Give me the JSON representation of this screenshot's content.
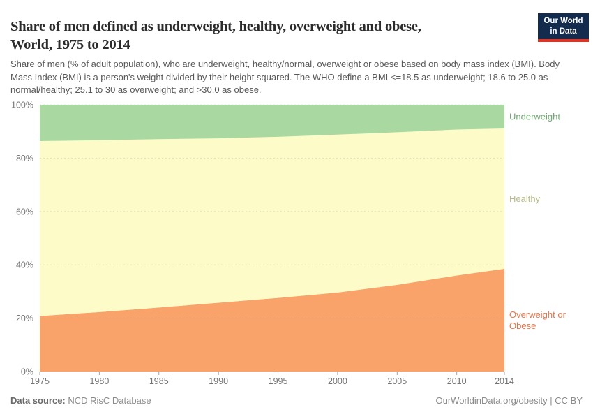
{
  "header": {
    "title_lines": [
      "Share of men defined as underweight, healthy, overweight and obese,",
      "World, 1975 to 2014"
    ],
    "subtitle": "Share of men (% of adult population), who are underweight, healthy/normal, overweight or obese based on body mass index (BMI). Body Mass Index (BMI) is a person's weight divided by their height squared. The WHO define a BMI <=18.5 as underweight; 18.6 to 25.0 as normal/healthy; 25.1 to 30 as overweight; and >30.0 as obese.",
    "logo": {
      "line1": "Our World",
      "line2": "in Data",
      "bg_color": "#132c4e",
      "bar_color": "#dc3425"
    }
  },
  "chart_data": {
    "type": "area",
    "stacked": true,
    "x": [
      1975,
      1980,
      1985,
      1990,
      1995,
      2000,
      2005,
      2010,
      2014
    ],
    "series": [
      {
        "name": "Overweight or Obese",
        "label_lines": [
          "Overweight or",
          "Obese"
        ],
        "color": "#f9a269",
        "label_color": "#e4764b",
        "values": [
          20.8,
          22.3,
          24.0,
          25.8,
          27.6,
          29.6,
          32.5,
          36.0,
          38.5
        ]
      },
      {
        "name": "Healthy",
        "label_lines": [
          "Healthy"
        ],
        "color": "#fdfcc8",
        "label_color": "#b9bc87",
        "values": [
          65.6,
          64.4,
          63.1,
          61.6,
          60.4,
          59.2,
          57.2,
          54.7,
          52.6
        ]
      },
      {
        "name": "Underweight",
        "label_lines": [
          "Underweight"
        ],
        "color": "#a9d8a1",
        "label_color": "#6fa871",
        "values": [
          13.6,
          13.3,
          12.9,
          12.6,
          12.0,
          11.2,
          10.3,
          9.3,
          8.9
        ]
      }
    ],
    "xlabel": "",
    "ylabel": "",
    "ylim": [
      0,
      100
    ],
    "yticks": [
      0,
      20,
      40,
      60,
      80,
      100
    ],
    "ytick_suffix": "%",
    "xticks": [
      1975,
      1980,
      1985,
      1990,
      1995,
      2000,
      2005,
      2010,
      2014
    ],
    "grid": "dashed",
    "grid_color": "#8f8f8f",
    "axis_text_color": "#737373",
    "tick_color": "#a3a3a3",
    "legend_position": "right"
  },
  "footer": {
    "source_label": "Data source:",
    "source_value": " NCD RisC Database",
    "credit": "OurWorldinData.org/obesity | CC BY"
  }
}
